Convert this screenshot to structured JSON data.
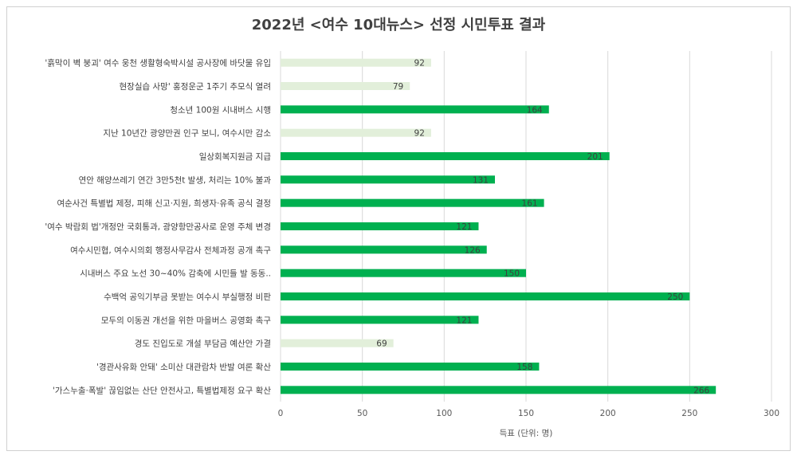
{
  "chart_data": {
    "type": "bar",
    "orientation": "horizontal",
    "title": "2022년 <여수 10대뉴스> 선정 시민투표 결과",
    "xlabel": "득표 (단위: 명)",
    "ylabel": "",
    "xlim": [
      0,
      300
    ],
    "xticks": [
      0,
      50,
      100,
      150,
      200,
      250,
      300
    ],
    "grid": true,
    "legend": "none",
    "colors": {
      "high": "#00B050",
      "low": "#E2EFDA"
    },
    "categories": [
      "'흙막이 벽 붕괴' 여수 웅천 생활형숙박시설 공사장에 바닷물 유입",
      "현장실습 사망' 홍정운군 1주기 추모식 열려",
      "청소년 100원 시내버스 시행",
      "지난 10년간 광양만권 인구 보니, 여수시만 감소",
      "일상회복지원금 지급",
      "연안 해양쓰레기 연간 3만5천t 발생, 처리는 10% 불과",
      "여순사건 특별법 제정, 피해 신고·지원, 희생자·유족 공식 결정",
      "'여수 박람회 법'개정안 국회통과, 광양항만공사로 운영 주체 변경",
      "여수시민협, 여수시의회 행정사무감사 전체과정 공개 촉구",
      "시내버스 주요 노선 30~40% 감축에 시민들 발 동동..",
      "수백억 공익기부금 못받는 여수시 부실행정 비판",
      "모두의 이동권 개선을 위한 마을버스 공영화 촉구",
      "경도 진입도로 개설 부담금 예산안 가결",
      "'경관사유화 안돼' 소미산 대관람차 반발 여론 확산",
      "'가스누출·폭발' 끊임없는 산단 안전사고, 특별법제정 요구 확산"
    ],
    "values": [
      92,
      79,
      164,
      92,
      201,
      131,
      161,
      121,
      126,
      150,
      250,
      121,
      69,
      158,
      266
    ],
    "highlighted": [
      false,
      false,
      true,
      false,
      true,
      true,
      true,
      true,
      true,
      true,
      true,
      true,
      false,
      true,
      true
    ]
  }
}
